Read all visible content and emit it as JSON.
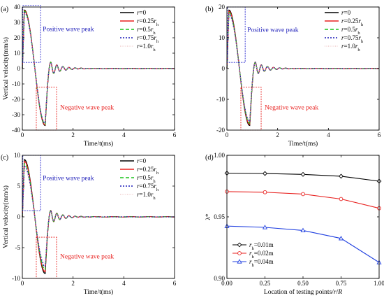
{
  "chart_data": [
    {
      "panel": "(a)",
      "type": "line",
      "xlabel": "Time/t(ms)",
      "ylabel": "Vertical velocity(mm/s)",
      "xlim": [
        0,
        6
      ],
      "ylim": [
        -40,
        40
      ],
      "xticks": [
        0,
        2,
        4,
        6
      ],
      "yticks": [
        -40,
        -30,
        -20,
        -10,
        0,
        10,
        20,
        30,
        40
      ],
      "peak": 38,
      "trough": -37,
      "legend": [
        "r=0",
        "r=0.25r_h",
        "r=0.5r_h",
        "r=0.75r_h",
        "r=1.0r_h"
      ],
      "annotations": [
        "Positive wave peak",
        "Negative wave peak"
      ],
      "boxes": [
        {
          "x": [
            0.02,
            0.72
          ],
          "y": [
            4,
            41
          ]
        },
        {
          "x": [
            0.55,
            1.35
          ],
          "y": [
            -40,
            -12
          ]
        }
      ],
      "series": [
        {
          "name": "r=0",
          "scale": 1.0
        },
        {
          "name": "r=0.25r_h",
          "scale": 0.99
        },
        {
          "name": "r=0.5r_h",
          "scale": 0.98
        },
        {
          "name": "r=0.75r_h",
          "scale": 0.96
        },
        {
          "name": "r=1.0r_h",
          "scale": 0.94
        }
      ]
    },
    {
      "panel": "(b)",
      "type": "line",
      "xlabel": "Time/t(ms)",
      "ylabel": "",
      "xlim": [
        0,
        6
      ],
      "ylim": [
        -20,
        20
      ],
      "xticks": [
        0,
        2,
        4,
        6
      ],
      "yticks": [
        -20,
        -10,
        0,
        10,
        20
      ],
      "peak": 19,
      "trough": -18.5,
      "legend": [
        "r=0",
        "r=0.25r_h",
        "r=0.5r_h",
        "r=0.75r_h",
        "r=1.0r_h"
      ],
      "annotations": [
        "Positive wave peak",
        "Negative wave peak"
      ],
      "boxes": [
        {
          "x": [
            0.02,
            0.72
          ],
          "y": [
            2,
            20
          ]
        },
        {
          "x": [
            0.55,
            1.35
          ],
          "y": [
            -20,
            -6
          ]
        }
      ],
      "series": [
        {
          "name": "r=0",
          "scale": 1.0
        },
        {
          "name": "r=0.25r_h",
          "scale": 0.98
        },
        {
          "name": "r=0.5r_h",
          "scale": 0.96
        },
        {
          "name": "r=0.75r_h",
          "scale": 0.93
        },
        {
          "name": "r=1.0r_h",
          "scale": 0.9
        }
      ]
    },
    {
      "panel": "(c)",
      "type": "line",
      "xlabel": "Time/t(ms)",
      "ylabel": "Vertical velocity(mm/s)",
      "xlim": [
        0,
        6
      ],
      "ylim": [
        -10,
        10
      ],
      "xticks": [
        0,
        2,
        4,
        6
      ],
      "yticks": [
        -10,
        -5,
        0,
        5,
        10
      ],
      "peak": 9.3,
      "trough": -9.2,
      "legend": [
        "r=0",
        "r=0.25r_h",
        "r=0.5r_h",
        "r=0.75r_h",
        "r=1.0r_h"
      ],
      "annotations": [
        "Positive wave peak",
        "Negative wave peak"
      ],
      "boxes": [
        {
          "x": [
            0.02,
            0.72
          ],
          "y": [
            1,
            10
          ]
        },
        {
          "x": [
            0.55,
            1.35
          ],
          "y": [
            -10,
            -3.3
          ]
        }
      ],
      "series": [
        {
          "name": "r=0",
          "scale": 1.0
        },
        {
          "name": "r=0.25r_h",
          "scale": 0.97
        },
        {
          "name": "r=0.5r_h",
          "scale": 0.93
        },
        {
          "name": "r=0.75r_h",
          "scale": 0.88
        },
        {
          "name": "r=1.0r_h",
          "scale": 0.83
        }
      ]
    },
    {
      "panel": "(d)",
      "type": "line",
      "xlabel": "Location of testing points/r/R",
      "ylabel": "λ*",
      "xlim": [
        0,
        1
      ],
      "ylim": [
        0.9,
        1.0
      ],
      "xticks": [
        0.0,
        0.25,
        0.5,
        0.75,
        1.0
      ],
      "yticks": [
        0.9,
        0.95,
        1.0
      ],
      "legend_loc": "lower-left",
      "x": [
        0.0,
        0.25,
        0.5,
        0.75,
        1.0
      ],
      "series": [
        {
          "name": "r_h=0.01m",
          "values": [
            0.9855,
            0.9852,
            0.9845,
            0.983,
            0.979
          ]
        },
        {
          "name": "r_h=0.02m",
          "values": [
            0.9705,
            0.97,
            0.9685,
            0.9645,
            0.957
          ]
        },
        {
          "name": "r_h=0.04m",
          "values": [
            0.9425,
            0.9415,
            0.939,
            0.9325,
            0.913
          ]
        }
      ]
    }
  ],
  "styles": {
    "colors": [
      "#000000",
      "#e8211f",
      "#19c419",
      "#1a1ab8",
      "#e9b4b4"
    ],
    "d_colors": [
      "#000000",
      "#e8211f",
      "#1f3fe0"
    ],
    "box_color": "#2a2ad0",
    "box_neg_color": "#e8211f",
    "pos_text_color": "#1a1ab8",
    "neg_text_color": "#e8211f"
  }
}
